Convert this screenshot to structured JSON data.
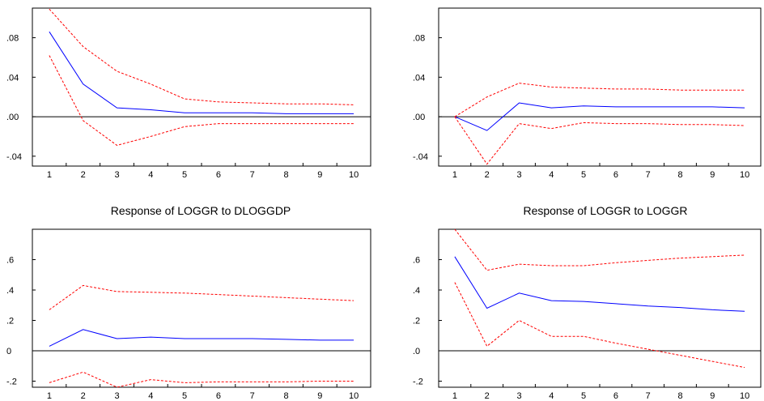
{
  "colors": {
    "response": "#0000ff",
    "band": "#ff0000",
    "zero_line": "#000000",
    "axis": "#000000",
    "background": "#ffffff"
  },
  "chart_data": [
    {
      "type": "line",
      "title": "",
      "x": [
        1,
        2,
        3,
        4,
        5,
        6,
        7,
        8,
        9,
        10
      ],
      "xticks": [
        "1",
        "2",
        "3",
        "4",
        "5",
        "6",
        "7",
        "8",
        "9",
        "10"
      ],
      "ylim": [
        -0.05,
        0.11
      ],
      "yticks": [
        -0.04,
        0.0,
        0.04,
        0.08
      ],
      "ytick_labels": [
        "-.04",
        ".00",
        ".04",
        ".08"
      ],
      "zero_line": true,
      "series": [
        {
          "role": "response",
          "values": [
            0.086,
            0.033,
            0.009,
            0.007,
            0.004,
            0.004,
            0.004,
            0.003,
            0.003,
            0.003
          ]
        },
        {
          "role": "upper",
          "values": [
            0.109,
            0.071,
            0.046,
            0.033,
            0.018,
            0.015,
            0.014,
            0.013,
            0.013,
            0.012
          ]
        },
        {
          "role": "lower",
          "values": [
            0.062,
            -0.004,
            -0.029,
            -0.02,
            -0.01,
            -0.007,
            -0.007,
            -0.007,
            -0.007,
            -0.007
          ]
        }
      ]
    },
    {
      "type": "line",
      "title": "",
      "x": [
        1,
        2,
        3,
        4,
        5,
        6,
        7,
        8,
        9,
        10
      ],
      "xticks": [
        "1",
        "2",
        "3",
        "4",
        "5",
        "6",
        "7",
        "8",
        "9",
        "10"
      ],
      "ylim": [
        -0.05,
        0.11
      ],
      "yticks": [
        -0.04,
        0.0,
        0.04,
        0.08
      ],
      "ytick_labels": [
        "-.04",
        ".00",
        ".04",
        ".08"
      ],
      "zero_line": true,
      "series": [
        {
          "role": "response",
          "values": [
            0.0,
            -0.014,
            0.014,
            0.009,
            0.011,
            0.01,
            0.01,
            0.01,
            0.01,
            0.009
          ]
        },
        {
          "role": "upper",
          "values": [
            0.0,
            0.02,
            0.034,
            0.03,
            0.029,
            0.028,
            0.028,
            0.027,
            0.027,
            0.027
          ]
        },
        {
          "role": "lower",
          "values": [
            0.0,
            -0.048,
            -0.007,
            -0.012,
            -0.006,
            -0.007,
            -0.007,
            -0.008,
            -0.008,
            -0.009
          ]
        }
      ]
    },
    {
      "type": "line",
      "title": "Response of LOGGR to DLOGGDP",
      "x": [
        1,
        2,
        3,
        4,
        5,
        6,
        7,
        8,
        9,
        10
      ],
      "xticks": [
        "1",
        "2",
        "3",
        "4",
        "5",
        "6",
        "7",
        "8",
        "9",
        "10"
      ],
      "ylim": [
        -0.24,
        0.8
      ],
      "yticks": [
        -0.2,
        0.0,
        0.2,
        0.4,
        0.6
      ],
      "ytick_labels": [
        "-.2",
        "0",
        ".2",
        ".4",
        ".6"
      ],
      "zero_line": true,
      "series": [
        {
          "role": "response",
          "values": [
            0.03,
            0.14,
            0.08,
            0.09,
            0.08,
            0.08,
            0.08,
            0.075,
            0.07,
            0.07
          ]
        },
        {
          "role": "upper",
          "values": [
            0.27,
            0.43,
            0.39,
            0.385,
            0.38,
            0.37,
            0.36,
            0.35,
            0.34,
            0.33
          ]
        },
        {
          "role": "lower",
          "values": [
            -0.21,
            -0.14,
            -0.24,
            -0.19,
            -0.21,
            -0.205,
            -0.205,
            -0.205,
            -0.2,
            -0.2
          ]
        }
      ]
    },
    {
      "type": "line",
      "title": "Response of LOGGR to LOGGR",
      "x": [
        1,
        2,
        3,
        4,
        5,
        6,
        7,
        8,
        9,
        10
      ],
      "xticks": [
        "1",
        "2",
        "3",
        "4",
        "5",
        "6",
        "7",
        "8",
        "9",
        "10"
      ],
      "ylim": [
        -0.24,
        0.8
      ],
      "yticks": [
        -0.2,
        0.0,
        0.2,
        0.4,
        0.6
      ],
      "ytick_labels": [
        "-.2",
        ".0",
        ".2",
        ".4",
        ".6"
      ],
      "zero_line": true,
      "series": [
        {
          "role": "response",
          "values": [
            0.62,
            0.28,
            0.38,
            0.33,
            0.325,
            0.31,
            0.295,
            0.285,
            0.27,
            0.26
          ]
        },
        {
          "role": "upper",
          "values": [
            0.8,
            0.53,
            0.57,
            0.56,
            0.56,
            0.58,
            0.595,
            0.61,
            0.62,
            0.63
          ]
        },
        {
          "role": "lower",
          "values": [
            0.45,
            0.03,
            0.2,
            0.095,
            0.095,
            0.05,
            0.01,
            -0.03,
            -0.07,
            -0.11
          ]
        }
      ]
    }
  ]
}
